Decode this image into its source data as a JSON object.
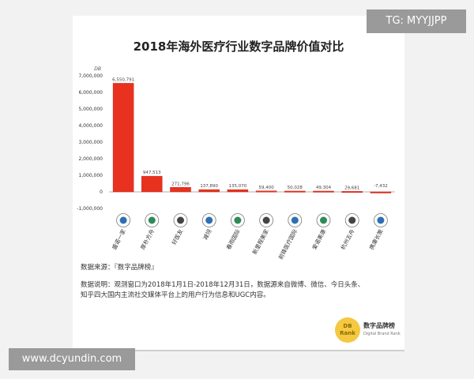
{
  "watermark_top": "TG: MYYJJPP",
  "watermark_bottom": "www.dcyundin.com",
  "source_line": "数据来源：『数字品牌榜』",
  "description_lines": [
    "数据说明：观测窗口为2018年1月1日-2018年12月31日，数据源来自微博、微信、今日头条、",
    "知乎四大国内主流社交媒体平台上的用户行为信息和UGC内容。"
  ],
  "brand": {
    "logo_text": "DB Rank",
    "name": "数字品牌榜",
    "subtitle": "Digital Brand Rank"
  },
  "colors": {
    "bar": "#e8311f",
    "bar_edge": "#c21f10",
    "background": "#f2f2f2",
    "card": "#ffffff",
    "badge": "#9a9a9a"
  },
  "chart_data": {
    "type": "bar",
    "title": "2018年海外医疗行业数字品牌价值对比",
    "unit_label": "DB",
    "categories": [
      "盛诺一家",
      "厚朴方舟",
      "好医友",
      "减翎",
      "春雨国际",
      "新里程美家",
      "前锋医疗国际",
      "爱诺美康",
      "杭州五舟",
      "携康长策"
    ],
    "values": [
      6550791,
      947513,
      271796,
      137890,
      135070,
      59400,
      50028,
      49304,
      29681,
      -7432
    ],
    "value_labels": [
      "6,550,791",
      "947,513",
      "271,796",
      "137,890",
      "135,070",
      "59,400",
      "50,028",
      "49,304",
      "29,681",
      "-7,432"
    ],
    "yticks": [
      7000000,
      6000000,
      5000000,
      4000000,
      3000000,
      2000000,
      1000000,
      0,
      -1000000
    ],
    "ytick_labels": [
      "7,000,000",
      "6,000,000",
      "5,000,000",
      "4,000,000",
      "3,000,000",
      "2,000,000",
      "1,000,000",
      "0",
      "-1,000,000"
    ],
    "ylim": [
      -1000000,
      7000000
    ],
    "logo_icons": [
      "shield-logo-icon",
      "fangzhou-logo-icon",
      "globe-logo-icon",
      "car-logo-icon",
      "chunyu-logo-icon",
      "xinlicheng-logo-icon",
      "cross-logo-icon",
      "sphere-logo-icon",
      "house-logo-icon",
      "xkmed-logo-icon"
    ],
    "grid": false,
    "legend": "none"
  }
}
